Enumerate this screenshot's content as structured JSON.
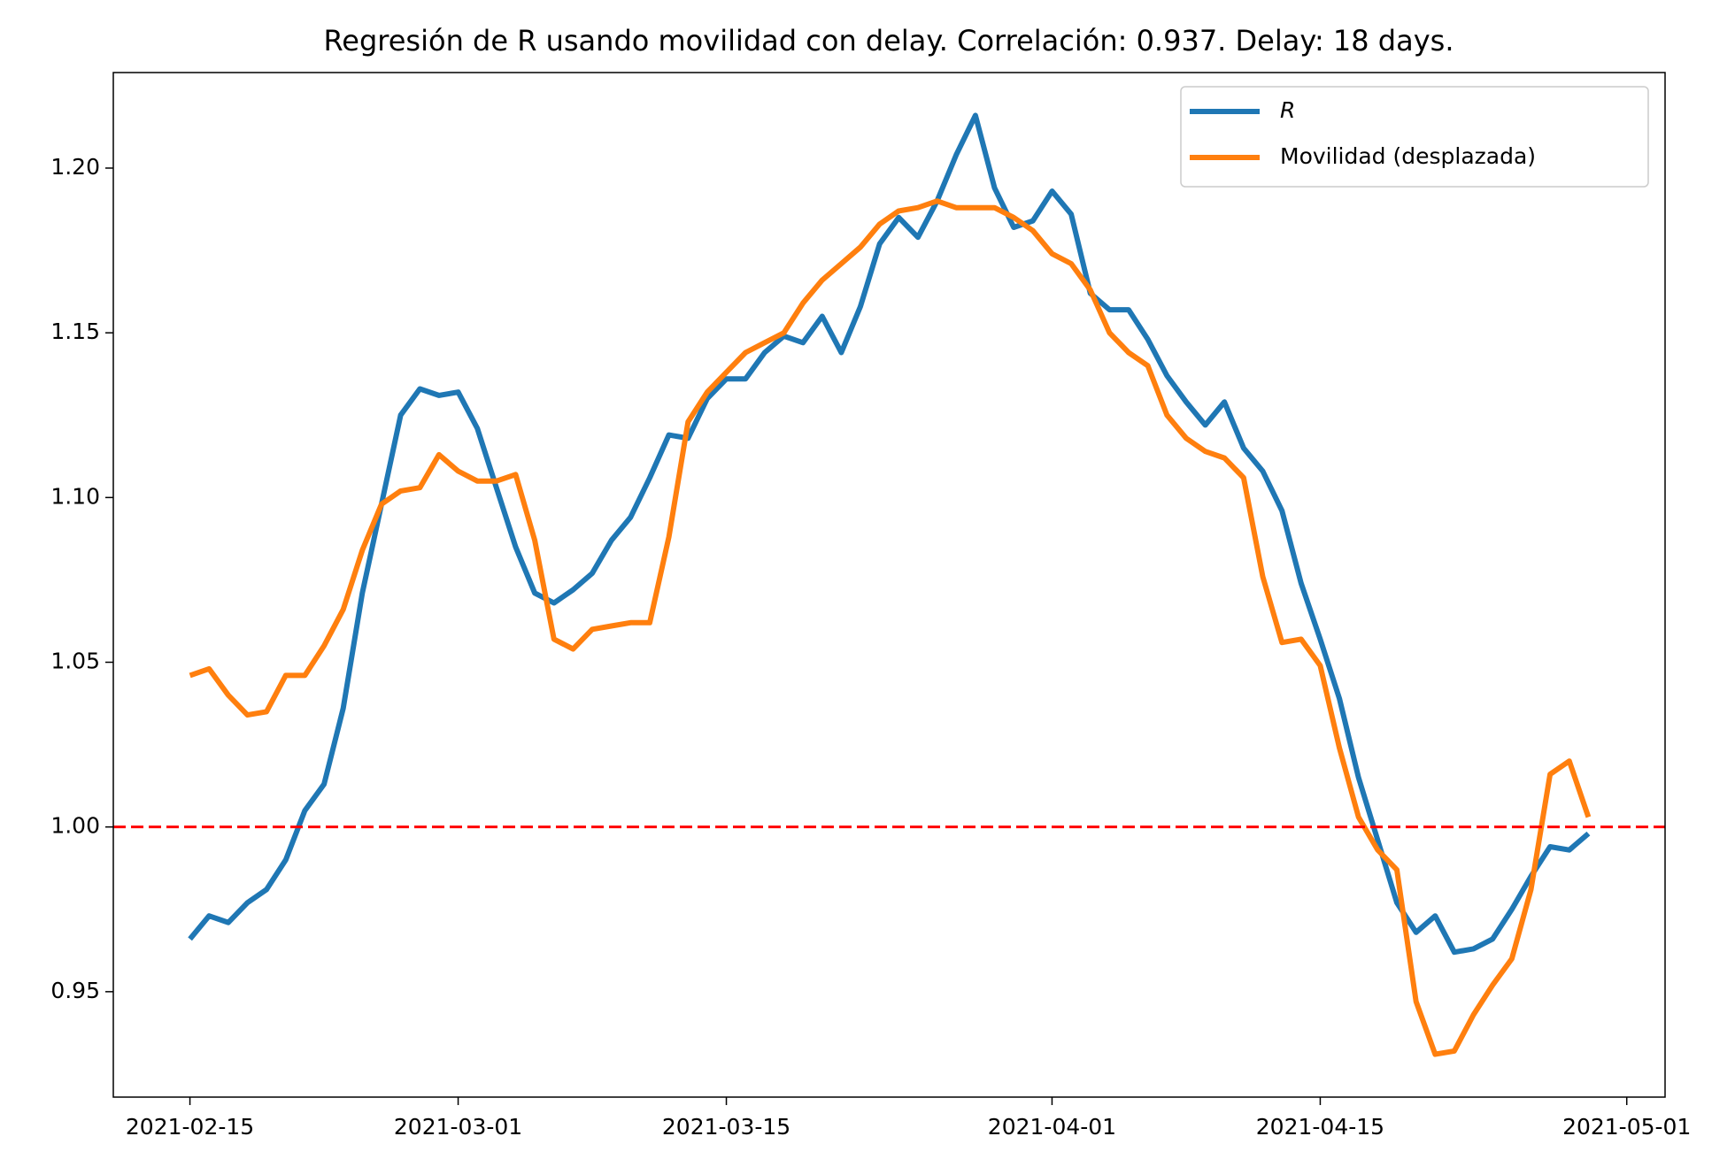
{
  "chart_data": {
    "type": "line",
    "title": "Regresión de R usando movilidad con delay. Correlación: 0.937. Delay: 18 days.",
    "x": [
      "2021-02-15",
      "2021-02-16",
      "2021-02-17",
      "2021-02-18",
      "2021-02-19",
      "2021-02-20",
      "2021-02-21",
      "2021-02-22",
      "2021-02-23",
      "2021-02-24",
      "2021-02-25",
      "2021-02-26",
      "2021-02-27",
      "2021-02-28",
      "2021-03-01",
      "2021-03-02",
      "2021-03-03",
      "2021-03-04",
      "2021-03-05",
      "2021-03-06",
      "2021-03-07",
      "2021-03-08",
      "2021-03-09",
      "2021-03-10",
      "2021-03-11",
      "2021-03-12",
      "2021-03-13",
      "2021-03-14",
      "2021-03-15",
      "2021-03-16",
      "2021-03-17",
      "2021-03-18",
      "2021-03-19",
      "2021-03-20",
      "2021-03-21",
      "2021-03-22",
      "2021-03-23",
      "2021-03-24",
      "2021-03-25",
      "2021-03-26",
      "2021-03-27",
      "2021-03-28",
      "2021-03-29",
      "2021-03-30",
      "2021-03-31",
      "2021-04-01",
      "2021-04-02",
      "2021-04-03",
      "2021-04-04",
      "2021-04-05",
      "2021-04-06",
      "2021-04-07",
      "2021-04-08",
      "2021-04-09",
      "2021-04-10",
      "2021-04-11",
      "2021-04-12",
      "2021-04-13",
      "2021-04-14",
      "2021-04-15",
      "2021-04-16",
      "2021-04-17",
      "2021-04-18",
      "2021-04-19",
      "2021-04-20",
      "2021-04-21",
      "2021-04-22",
      "2021-04-23",
      "2021-04-24",
      "2021-04-25",
      "2021-04-26",
      "2021-04-27",
      "2021-04-28",
      "2021-04-29"
    ],
    "series": [
      {
        "name": "R",
        "color": "#1f77b4",
        "values": [
          0.966,
          0.973,
          0.971,
          0.977,
          0.981,
          0.99,
          1.005,
          1.013,
          1.036,
          1.071,
          1.098,
          1.125,
          1.133,
          1.131,
          1.132,
          1.121,
          1.103,
          1.085,
          1.071,
          1.068,
          1.072,
          1.077,
          1.087,
          1.094,
          1.106,
          1.119,
          1.118,
          1.13,
          1.136,
          1.136,
          1.144,
          1.149,
          1.147,
          1.155,
          1.144,
          1.158,
          1.177,
          1.185,
          1.179,
          1.19,
          1.204,
          1.216,
          1.194,
          1.182,
          1.184,
          1.193,
          1.186,
          1.162,
          1.157,
          1.157,
          1.148,
          1.137,
          1.129,
          1.122,
          1.129,
          1.115,
          1.108,
          1.096,
          1.074,
          1.057,
          1.039,
          1.015,
          0.996,
          0.977,
          0.968,
          0.973,
          0.962,
          0.963,
          0.966,
          0.975,
          0.985,
          0.994,
          0.993,
          0.998
        ]
      },
      {
        "name": "Movilidad (desplazada)",
        "color": "#ff7f0e",
        "values": [
          1.046,
          1.048,
          1.04,
          1.034,
          1.035,
          1.046,
          1.046,
          1.055,
          1.066,
          1.084,
          1.098,
          1.102,
          1.103,
          1.113,
          1.108,
          1.105,
          1.105,
          1.107,
          1.087,
          1.057,
          1.054,
          1.06,
          1.061,
          1.062,
          1.062,
          1.088,
          1.123,
          1.132,
          1.138,
          1.144,
          1.147,
          1.15,
          1.159,
          1.166,
          1.171,
          1.176,
          1.183,
          1.187,
          1.188,
          1.19,
          1.188,
          1.188,
          1.188,
          1.185,
          1.181,
          1.174,
          1.171,
          1.163,
          1.15,
          1.144,
          1.14,
          1.125,
          1.118,
          1.114,
          1.112,
          1.106,
          1.076,
          1.056,
          1.057,
          1.049,
          1.024,
          1.003,
          0.993,
          0.987,
          0.947,
          0.931,
          0.932,
          0.943,
          0.952,
          0.96,
          0.981,
          1.016,
          1.02,
          1.003
        ]
      }
    ],
    "hline": {
      "value": 1.0,
      "color": "#ff0000",
      "style": "dashed"
    },
    "xlim": [
      "2021-02-11",
      "2021-05-03"
    ],
    "xticks": [
      "2021-02-15",
      "2021-03-01",
      "2021-03-15",
      "2021-04-01",
      "2021-04-15",
      "2021-05-01"
    ],
    "ylim": [
      0.918,
      1.229
    ],
    "yticks": [
      0.95,
      1.05,
      {
        "value": 1.0,
        "label": "1.00"
      },
      {
        "value": 1.1,
        "label": "1.10"
      },
      1.15,
      {
        "value": 1.2,
        "label": "1.20"
      }
    ],
    "legend": "upper right",
    "grid": false
  }
}
